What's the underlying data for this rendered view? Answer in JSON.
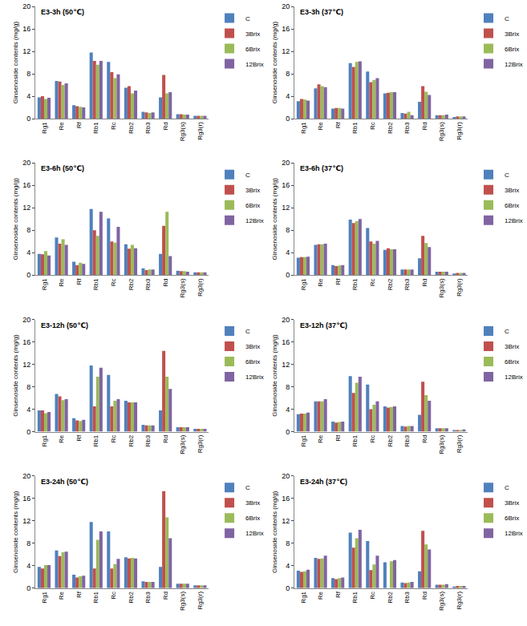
{
  "chart_data": [
    {
      "type": "bar",
      "title": "E3-3h (50℃)",
      "ylabel": "Ginsenoside contents (mg/g)",
      "categories": [
        "Rg1",
        "Re",
        "Rf",
        "Rb1",
        "Rc",
        "Rb2",
        "Rb3",
        "Rd",
        "Rg3(s)",
        "Rg3(r)"
      ],
      "series": [
        {
          "name": "C",
          "color": "#4F81BD",
          "values": [
            3.8,
            6.7,
            2.4,
            11.8,
            10.1,
            5.5,
            1.2,
            3.8,
            0.8,
            0.5
          ]
        },
        {
          "name": "3Brix",
          "color": "#C0504D",
          "values": [
            4.0,
            6.6,
            2.2,
            10.3,
            8.3,
            5.8,
            1.1,
            7.8,
            0.8,
            0.5
          ]
        },
        {
          "name": "6Brix",
          "color": "#9BBB59",
          "values": [
            3.5,
            6.0,
            2.1,
            9.6,
            7.2,
            4.5,
            1.0,
            4.5,
            0.7,
            0.5
          ]
        },
        {
          "name": "12Brix",
          "color": "#8064A2",
          "values": [
            3.7,
            6.3,
            2.0,
            10.3,
            7.9,
            5.0,
            1.1,
            4.7,
            0.7,
            0.5
          ]
        }
      ],
      "ylim": [
        0,
        20
      ],
      "yticks": [
        0,
        4,
        8,
        12,
        16,
        20
      ],
      "grid": false,
      "legend": "right"
    },
    {
      "type": "bar",
      "title": "E3-3h (37℃)",
      "ylabel": "Ginsenoside contents (mg/g)",
      "categories": [
        "Rg1",
        "Re",
        "Rf",
        "Rb1",
        "Rc",
        "Rb2",
        "Rb3",
        "Rd",
        "Rg3(s)",
        "Rg3(r)"
      ],
      "series": [
        {
          "name": "C",
          "color": "#4F81BD",
          "values": [
            3.1,
            5.4,
            1.8,
            9.9,
            8.4,
            4.5,
            1.0,
            3.0,
            0.6,
            0.3
          ]
        },
        {
          "name": "3Brix",
          "color": "#C0504D",
          "values": [
            3.5,
            6.1,
            1.9,
            9.2,
            6.5,
            4.6,
            0.9,
            5.8,
            0.6,
            0.4
          ]
        },
        {
          "name": "6Brix",
          "color": "#9BBB59",
          "values": [
            3.4,
            5.8,
            1.9,
            10.1,
            6.9,
            4.7,
            1.2,
            4.8,
            0.6,
            0.4
          ]
        },
        {
          "name": "12Brix",
          "color": "#8064A2",
          "values": [
            3.2,
            5.6,
            1.8,
            10.2,
            7.2,
            4.7,
            0.6,
            4.2,
            0.7,
            0.4
          ]
        }
      ],
      "ylim": [
        0,
        20
      ],
      "yticks": [
        0,
        4,
        8,
        12,
        16,
        20
      ],
      "grid": false,
      "legend": "right"
    },
    {
      "type": "bar",
      "title": "E3-6h (50℃)",
      "ylabel": "Ginsenoside contents (mg/g)",
      "categories": [
        "Rg1",
        "Re",
        "Rf",
        "Rb1",
        "Rc",
        "Rb2",
        "Rb3",
        "Rd",
        "Rg3(s)",
        "Rg3(r)"
      ],
      "series": [
        {
          "name": "C",
          "color": "#4F81BD",
          "values": [
            3.8,
            6.7,
            2.4,
            11.8,
            10.1,
            5.5,
            1.2,
            3.8,
            0.8,
            0.5
          ]
        },
        {
          "name": "3Brix",
          "color": "#C0504D",
          "values": [
            3.7,
            5.6,
            1.8,
            8.0,
            6.0,
            4.7,
            0.9,
            8.8,
            0.7,
            0.5
          ]
        },
        {
          "name": "6Brix",
          "color": "#9BBB59",
          "values": [
            4.3,
            6.4,
            2.2,
            7.0,
            5.8,
            5.4,
            1.0,
            11.3,
            0.7,
            0.5
          ]
        },
        {
          "name": "12Brix",
          "color": "#8064A2",
          "values": [
            3.5,
            5.4,
            2.0,
            11.3,
            8.6,
            4.8,
            1.0,
            3.4,
            0.6,
            0.5
          ]
        }
      ],
      "ylim": [
        0,
        20
      ],
      "yticks": [
        0,
        4,
        8,
        12,
        16,
        20
      ],
      "grid": false,
      "legend": "right"
    },
    {
      "type": "bar",
      "title": "E3-6h (37℃)",
      "ylabel": "Ginsenoside contents (mg/g)",
      "categories": [
        "Rg1",
        "Re",
        "Rf",
        "Rb1",
        "Rc",
        "Rb2",
        "Rb3",
        "Rd",
        "Rg3(s)",
        "Rg3(r)"
      ],
      "series": [
        {
          "name": "C",
          "color": "#4F81BD",
          "values": [
            3.1,
            5.4,
            1.8,
            9.9,
            8.4,
            4.5,
            1.0,
            3.0,
            0.6,
            0.3
          ]
        },
        {
          "name": "3Brix",
          "color": "#C0504D",
          "values": [
            3.2,
            5.5,
            1.6,
            9.3,
            6.0,
            4.8,
            1.0,
            7.0,
            0.6,
            0.4
          ]
        },
        {
          "name": "6Brix",
          "color": "#9BBB59",
          "values": [
            3.2,
            5.5,
            1.7,
            9.6,
            5.6,
            4.6,
            1.0,
            5.7,
            0.6,
            0.4
          ]
        },
        {
          "name": "12Brix",
          "color": "#8064A2",
          "values": [
            3.3,
            5.6,
            1.8,
            10.0,
            6.1,
            4.6,
            1.0,
            5.0,
            0.6,
            0.4
          ]
        }
      ],
      "ylim": [
        0,
        20
      ],
      "yticks": [
        0,
        4,
        8,
        12,
        16,
        20
      ],
      "grid": false,
      "legend": "right"
    },
    {
      "type": "bar",
      "title": "E3-12h (50℃)",
      "ylabel": "Ginsenoside contents (mg/g)",
      "categories": [
        "Rg1",
        "Re",
        "Rf",
        "Rb1",
        "Rc",
        "Rb2",
        "Rb3",
        "Rd",
        "Rg3(s)",
        "Rg3(r)"
      ],
      "series": [
        {
          "name": "C",
          "color": "#4F81BD",
          "values": [
            3.8,
            6.7,
            2.4,
            11.8,
            10.1,
            5.5,
            1.2,
            3.8,
            0.8,
            0.5
          ]
        },
        {
          "name": "3Brix",
          "color": "#C0504D",
          "values": [
            3.8,
            6.3,
            2.0,
            4.5,
            4.5,
            5.2,
            1.1,
            14.4,
            0.8,
            0.5
          ]
        },
        {
          "name": "6Brix",
          "color": "#9BBB59",
          "values": [
            3.3,
            5.6,
            1.9,
            9.8,
            5.5,
            5.2,
            1.1,
            9.8,
            0.8,
            0.5
          ]
        },
        {
          "name": "12Brix",
          "color": "#8064A2",
          "values": [
            3.5,
            5.8,
            2.1,
            11.4,
            5.8,
            5.2,
            1.1,
            7.6,
            0.8,
            0.5
          ]
        }
      ],
      "ylim": [
        0,
        20
      ],
      "yticks": [
        0,
        4,
        8,
        12,
        16,
        20
      ],
      "grid": false,
      "legend": "right"
    },
    {
      "type": "bar",
      "title": "E3-12h (37℃)",
      "ylabel": "Ginsenoside contents (mg/g)",
      "categories": [
        "Rg1",
        "Re",
        "Rf",
        "Rb1",
        "Rc",
        "Rb2",
        "Rb3",
        "Rd",
        "Rg3(s)",
        "Rg3(r)"
      ],
      "series": [
        {
          "name": "C",
          "color": "#4F81BD",
          "values": [
            3.1,
            5.4,
            1.8,
            9.9,
            8.4,
            4.5,
            1.0,
            3.0,
            0.6,
            0.3
          ]
        },
        {
          "name": "3Brix",
          "color": "#C0504D",
          "values": [
            3.2,
            5.4,
            1.6,
            6.9,
            4.0,
            4.3,
            0.9,
            8.9,
            0.6,
            0.3
          ]
        },
        {
          "name": "6Brix",
          "color": "#9BBB59",
          "values": [
            3.2,
            5.4,
            1.7,
            8.7,
            4.8,
            4.4,
            1.0,
            6.5,
            0.6,
            0.3
          ]
        },
        {
          "name": "12Brix",
          "color": "#8064A2",
          "values": [
            3.4,
            5.8,
            1.8,
            9.8,
            5.4,
            4.5,
            1.0,
            5.5,
            0.6,
            0.4
          ]
        }
      ],
      "ylim": [
        0,
        20
      ],
      "yticks": [
        0,
        4,
        8,
        12,
        16,
        20
      ],
      "grid": false,
      "legend": "right"
    },
    {
      "type": "bar",
      "title": "E3-24h (50℃)",
      "ylabel": "Ginsenoside contents (mg/g)",
      "categories": [
        "Rg1",
        "Re",
        "Rf",
        "Rb1",
        "Rc",
        "Rb2",
        "Rb3",
        "Rd",
        "Rg3(s)",
        "Rg3(r)"
      ],
      "series": [
        {
          "name": "C",
          "color": "#4F81BD",
          "values": [
            3.8,
            6.7,
            2.4,
            11.8,
            10.1,
            5.5,
            1.2,
            3.8,
            0.8,
            0.5
          ]
        },
        {
          "name": "3Brix",
          "color": "#C0504D",
          "values": [
            3.5,
            5.7,
            1.9,
            3.5,
            3.5,
            5.3,
            1.1,
            17.3,
            0.8,
            0.5
          ]
        },
        {
          "name": "6Brix",
          "color": "#9BBB59",
          "values": [
            4.1,
            6.4,
            2.1,
            8.6,
            4.3,
            5.4,
            1.1,
            12.6,
            0.8,
            0.5
          ]
        },
        {
          "name": "12Brix",
          "color": "#8064A2",
          "values": [
            4.1,
            6.5,
            2.2,
            10.1,
            5.2,
            5.3,
            1.1,
            8.9,
            0.8,
            0.5
          ]
        }
      ],
      "ylim": [
        0,
        20
      ],
      "yticks": [
        0,
        4,
        8,
        12,
        16,
        20
      ],
      "grid": false,
      "legend": "right"
    },
    {
      "type": "bar",
      "title": "E3-24h (37℃)",
      "ylabel": "Ginsenoside contents (mg/g)",
      "categories": [
        "Rg1",
        "Re",
        "Rf",
        "Rb1",
        "Rc",
        "Rb2",
        "Rb3",
        "Rd",
        "Rg3(s)",
        "Rg3(r)"
      ],
      "series": [
        {
          "name": "C",
          "color": "#4F81BD",
          "values": [
            3.1,
            5.4,
            1.8,
            9.9,
            8.4,
            4.6,
            1.0,
            3.0,
            0.6,
            0.3
          ]
        },
        {
          "name": "3Brix",
          "color": "#C0504D",
          "values": [
            2.9,
            5.2,
            1.6,
            7.2,
            3.2,
            0,
            0.9,
            10.2,
            0.6,
            0.4
          ]
        },
        {
          "name": "6Brix",
          "color": "#9BBB59",
          "values": [
            3.0,
            5.3,
            1.8,
            8.9,
            4.2,
            4.8,
            1.0,
            7.8,
            0.6,
            0.4
          ]
        },
        {
          "name": "12Brix",
          "color": "#8064A2",
          "values": [
            3.3,
            5.8,
            1.9,
            10.4,
            5.8,
            5.0,
            1.1,
            6.9,
            0.7,
            0.4
          ]
        }
      ],
      "ylim": [
        0,
        20
      ],
      "yticks": [
        0,
        4,
        8,
        12,
        16,
        20
      ],
      "grid": false,
      "legend": "right"
    }
  ]
}
